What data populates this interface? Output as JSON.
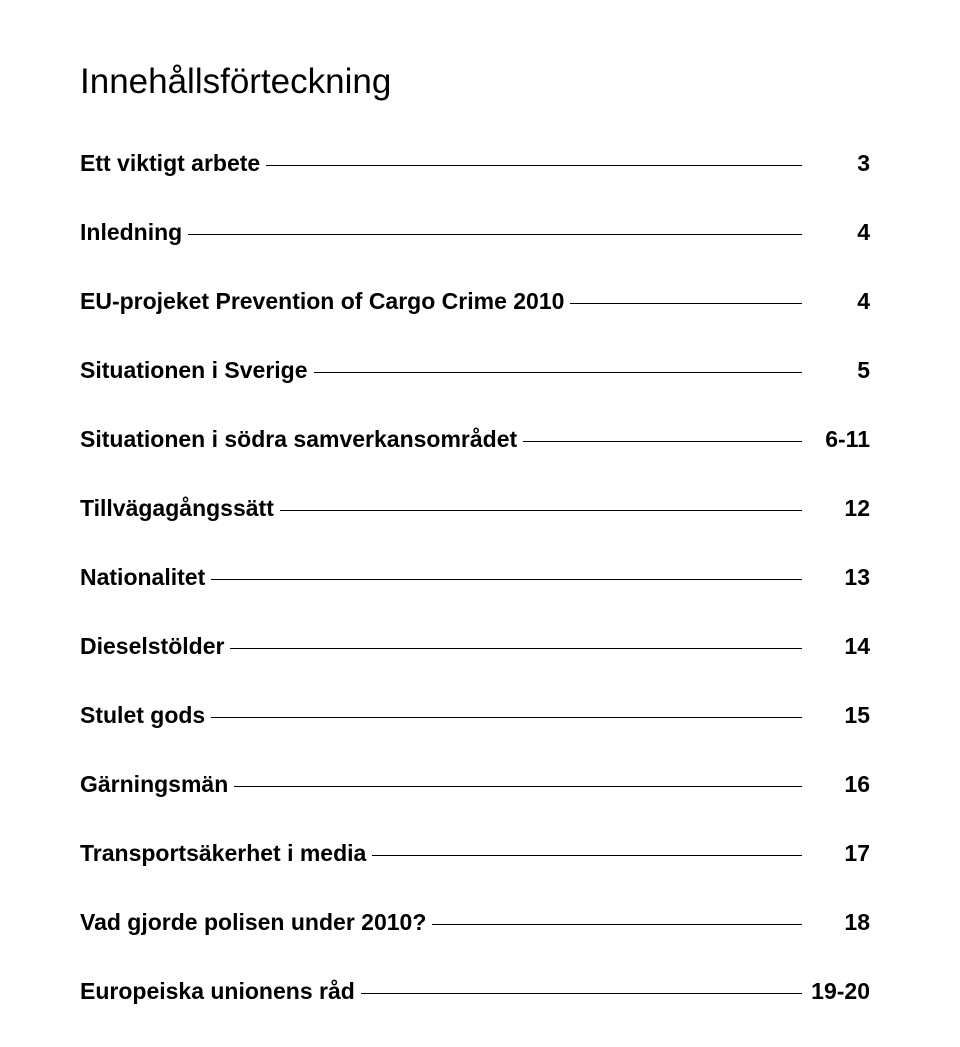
{
  "title": "Innehållsförteckning",
  "entries": [
    {
      "label": "Ett viktigt arbete",
      "page": "3"
    },
    {
      "label": "Inledning",
      "page": "4"
    },
    {
      "label": "EU-projeket Prevention of Cargo Crime 2010",
      "page": "4"
    },
    {
      "label": "Situationen i Sverige",
      "page": "5"
    },
    {
      "label": "Situationen i södra samverkansområdet",
      "page": "6-11"
    },
    {
      "label": "Tillvägagångssätt",
      "page": "12"
    },
    {
      "label": "Nationalitet",
      "page": "13"
    },
    {
      "label": "Dieselstölder",
      "page": "14"
    },
    {
      "label": "Stulet gods",
      "page": "15"
    },
    {
      "label": "Gärningsmän",
      "page": "16"
    },
    {
      "label": "Transportsäkerhet i media",
      "page": "17"
    },
    {
      "label": "Vad gjorde polisen under 2010?",
      "page": "18"
    },
    {
      "label": "Europeiska unionens råd",
      "page": "19-20"
    }
  ]
}
